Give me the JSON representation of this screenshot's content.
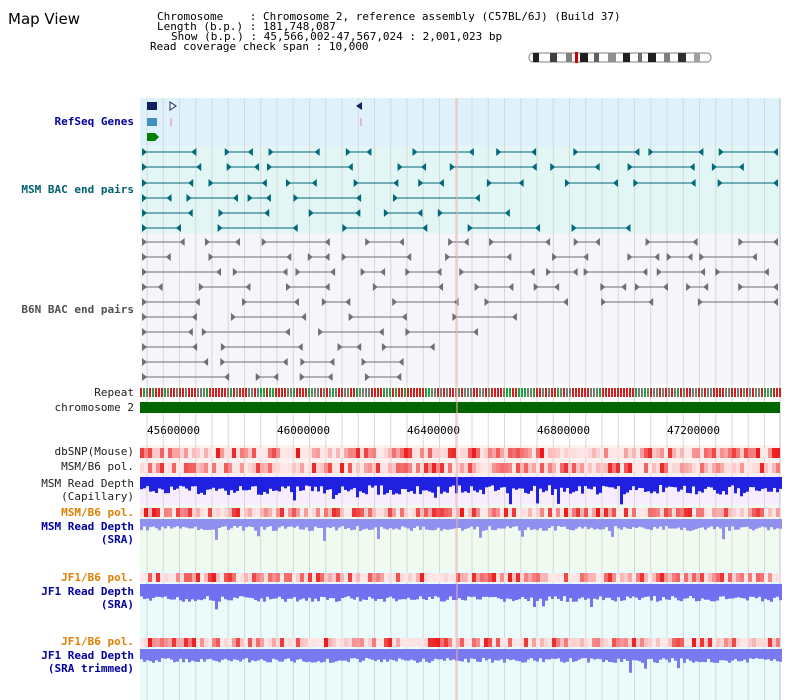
{
  "page": {
    "title": "Map View"
  },
  "info": {
    "chromosome_label": "Chromosome",
    "chromosome_value": ": Chromosome 2, reference assembly (C57BL/6J) (Build 37)",
    "length_label": "Length (b.p.)",
    "length_value": ": 181,748,087",
    "show_label": "Show (b.p.)",
    "show_value": ": 45,566,002-47,567,024 : 2,001,023 bp",
    "coverage_label": "Read coverage check span",
    "coverage_value": ": 10,000"
  },
  "tracks": {
    "refseq": "RefSeq Genes",
    "msm_bac": "MSM BAC end pairs",
    "b6n_bac": "B6N BAC end pairs",
    "repeat": "Repeat",
    "chromosome": "chromosome 2",
    "dbsnp": "dbSNP(Mouse)",
    "msm_b6_pol_1": "MSM/B6 pol.",
    "msm_read_depth_cap_1": "MSM Read Depth",
    "msm_read_depth_cap_2": "(Capillary)",
    "msm_b6_pol_2": "MSM/B6 pol.",
    "msm_read_depth_sra_1": "MSM Read Depth",
    "msm_read_depth_sra_2": "(SRA)",
    "jf1_b6_pol_1": "JF1/B6 pol.",
    "jf1_read_depth_sra_1": "JF1 Read Depth",
    "jf1_read_depth_sra_2": "(SRA)",
    "jf1_b6_pol_2": "JF1/B6 pol.",
    "jf1_read_depth_trim_1": "JF1 Read Depth",
    "jf1_read_depth_trim_2": "(SRA trimmed)"
  },
  "axis": {
    "ticks": [
      "45600000",
      "46000000",
      "46400000",
      "46800000",
      "47200000"
    ]
  },
  "colors": {
    "refseq_bg": "#dff2fb",
    "msm_bg": "#e2f6f6",
    "b6n_bg": "#f5f5fb",
    "gene_blue": "#102060",
    "bac_teal": "#006878",
    "bac_gray": "#707070",
    "chromosome_green": "#006600",
    "depth_blue": "#2020e0",
    "depth_light": "#9090f0",
    "pol_red": "#f05050"
  }
}
